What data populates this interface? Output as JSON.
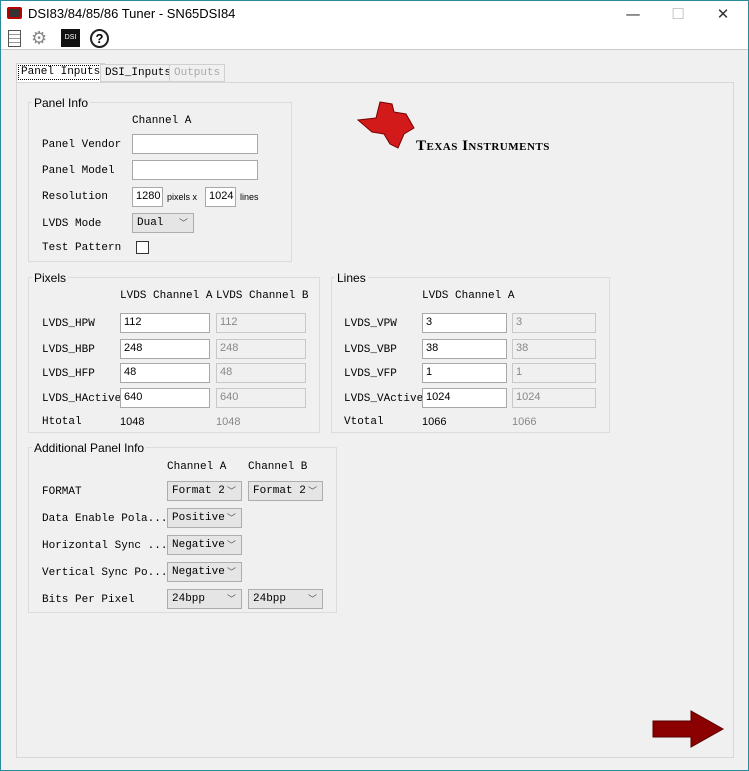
{
  "window": {
    "title": "DSI83/84/85/86 Tuner - SN65DSI84",
    "minimize": "—",
    "maximize": "☐",
    "close": "✕"
  },
  "toolbar": {
    "icons": [
      "document-icon",
      "gear-icon",
      "dsi-icon",
      "help-icon"
    ],
    "dsi_label": "DSI",
    "help_label": "?"
  },
  "tabs": [
    {
      "label": "Panel Inputs",
      "active": true
    },
    {
      "label": "DSI_Inputs"
    },
    {
      "label": "Outputs",
      "disabled": true
    }
  ],
  "logo": {
    "text": "Texas Instruments",
    "color": "#cc0000"
  },
  "panel_info": {
    "title": "Panel Info",
    "channel_header": "Channel A",
    "vendor_label": "Panel Vendor",
    "vendor_value": "",
    "model_label": "Panel Model",
    "model_value": "",
    "resolution_label": "Resolution",
    "h_pixels": "1280",
    "pixels_x": "pixels x",
    "v_lines": "1024",
    "lines": "lines",
    "lvds_mode_label": "LVDS Mode",
    "lvds_mode": "Dual",
    "test_pattern_label": "Test Pattern",
    "test_pattern_checked": false
  },
  "pixels": {
    "title": "Pixels",
    "header_a": "LVDS Channel A",
    "header_b": "LVDS Channel B",
    "rows": [
      {
        "label": "LVDS_HPW",
        "a": "112",
        "b": "112"
      },
      {
        "label": "LVDS_HBP",
        "a": "248",
        "b": "248"
      },
      {
        "label": "LVDS_HFP",
        "a": "48",
        "b": "48"
      },
      {
        "label": "LVDS_HActive",
        "a": "640",
        "b": "640"
      }
    ],
    "total_label": "Htotal",
    "total_a": "1048",
    "total_b": "1048"
  },
  "lines": {
    "title": "Lines",
    "header_a": "LVDS Channel A",
    "rows": [
      {
        "label": "LVDS_VPW",
        "a": "3",
        "b": "3"
      },
      {
        "label": "LVDS_VBP",
        "a": "38",
        "b": "38"
      },
      {
        "label": "LVDS_VFP",
        "a": "1",
        "b": "1"
      },
      {
        "label": "LVDS_VActive",
        "a": "1024",
        "b": "1024"
      }
    ],
    "total_label": "Vtotal",
    "total_a": "1066",
    "total_b": "1066"
  },
  "additional": {
    "title": "Additional Panel Info",
    "header_a": "Channel A",
    "header_b": "Channel B",
    "rows": [
      {
        "label": "FORMAT",
        "a": "Format 2",
        "b": "Format 2"
      },
      {
        "label": "Data Enable Pola...",
        "a": "Positive"
      },
      {
        "label": "Horizontal Sync ...",
        "a": "Negative"
      },
      {
        "label": "Vertical Sync Po...",
        "a": "Negative"
      },
      {
        "label": "Bits Per Pixel",
        "a": "24bpp",
        "b": "24bpp"
      }
    ]
  },
  "next_arrow": {
    "color": "#8b0000"
  }
}
